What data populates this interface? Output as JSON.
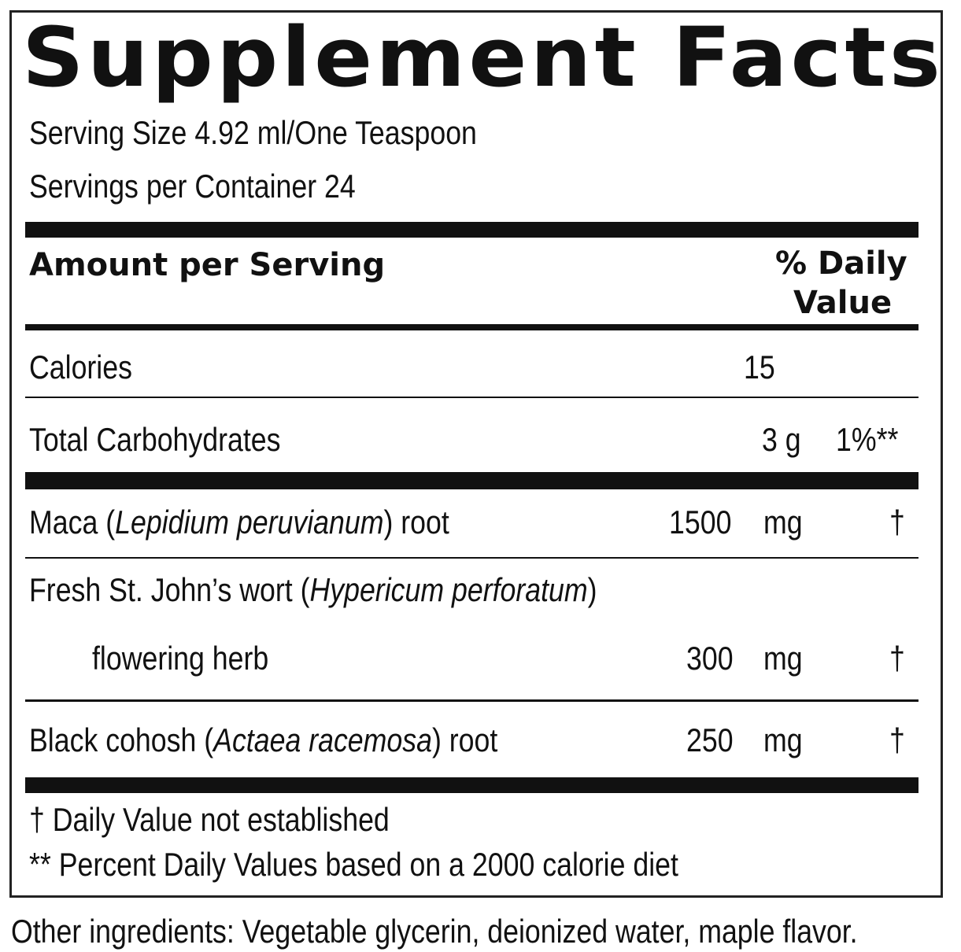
{
  "title": "Supplement Facts",
  "serving_size": "Serving Size 4.92 ml/One Teaspoon",
  "servings_per_container": "Servings per Container 24",
  "header": {
    "amount": "Amount per Serving",
    "dv_line1": "% Daily",
    "dv_line2": "Value"
  },
  "calories": {
    "label": "Calories",
    "value": "15"
  },
  "carbs": {
    "label": "Total Carbohydrates",
    "amount": "3 g",
    "dv": "1%**"
  },
  "ingredients": [
    {
      "name": "Maca (",
      "latin": "Lepidium peruvianum",
      "suffix": ") root",
      "amount": "1500",
      "unit": "mg",
      "dv": "†"
    },
    {
      "name": "Fresh St. John’s wort (",
      "latin": "Hypericum perforatum",
      "suffix": ")",
      "line2": "flowering herb",
      "amount": "300",
      "unit": "mg",
      "dv": "†"
    },
    {
      "name": "Black cohosh (",
      "latin": "Actaea racemosa",
      "suffix": ") root",
      "amount": "250",
      "unit": "mg",
      "dv": "†"
    }
  ],
  "footnotes": [
    "†  Daily Value not established",
    "** Percent Daily Values based on a 2000 calorie diet"
  ],
  "other_ingredients": "Other ingredients: Vegetable glycerin, deionized water, maple flavor."
}
